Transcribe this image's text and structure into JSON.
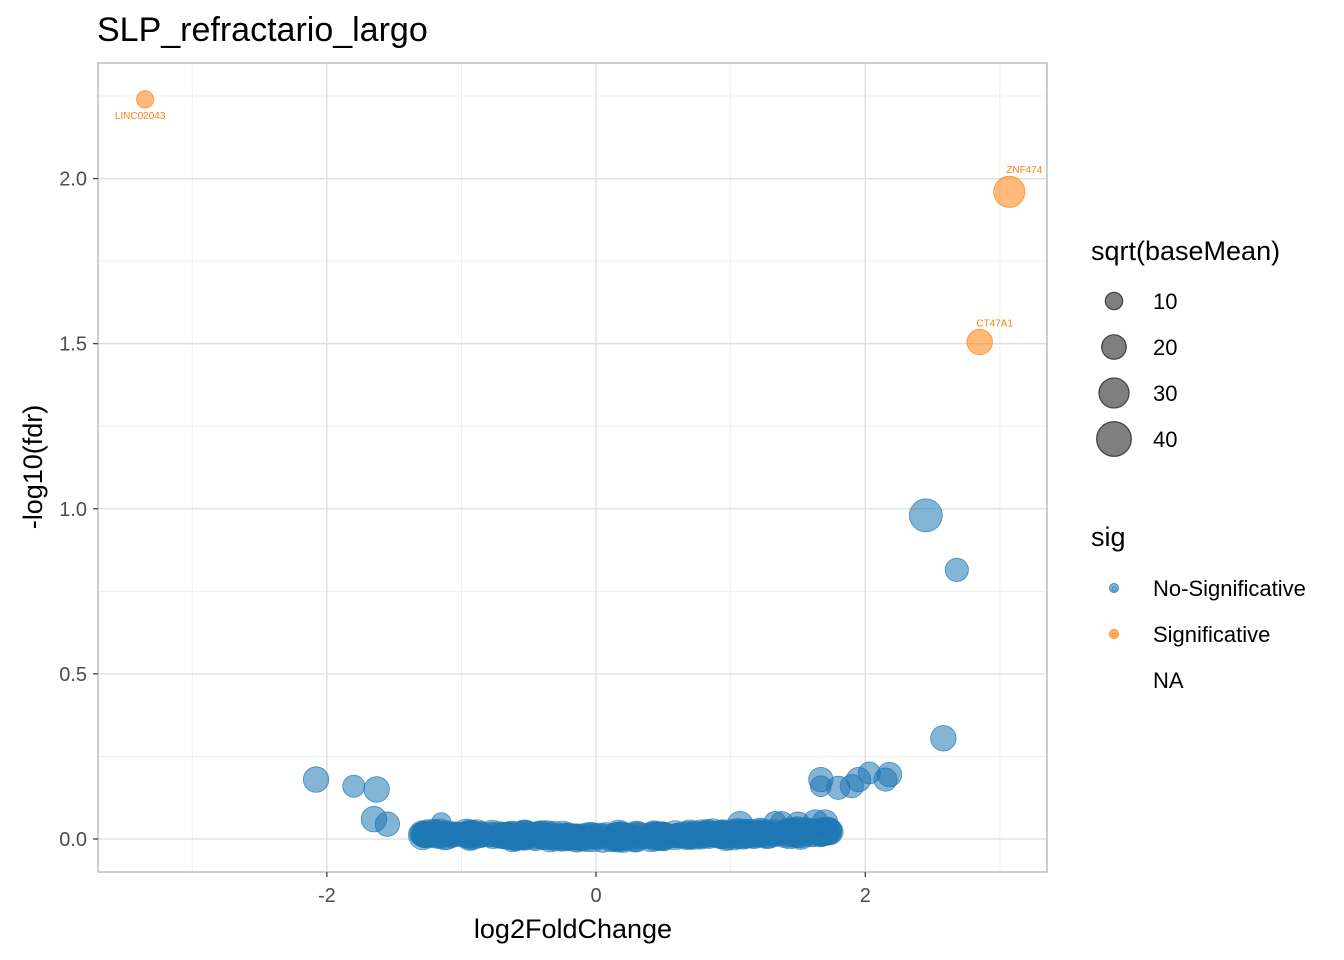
{
  "chart_data": {
    "type": "scatter",
    "title": "SLP_refractario_largo",
    "xlabel": "log2FoldChange",
    "ylabel": "-log10(fdr)",
    "xlim": [
      -3.7,
      3.35
    ],
    "ylim": [
      -0.1,
      2.35
    ],
    "xticks": [
      -2,
      0,
      2
    ],
    "xtick_labels": [
      "-2",
      "0",
      "2"
    ],
    "yticks": [
      0.0,
      0.5,
      1.0,
      1.5,
      2.0
    ],
    "ytick_labels": [
      "0.0",
      "0.5",
      "1.0",
      "1.5",
      "2.0"
    ],
    "grid": true,
    "legend_position": "right",
    "legend_size": {
      "title": "sqrt(baseMean)",
      "entries": [
        {
          "label": "10",
          "value": 10
        },
        {
          "label": "20",
          "value": 20
        },
        {
          "label": "30",
          "value": 30
        },
        {
          "label": "40",
          "value": 40
        }
      ]
    },
    "legend_color": {
      "title": "sig",
      "entries": [
        {
          "label": "No-Significative",
          "color": "#1f77b4"
        },
        {
          "label": "Significative",
          "color": "#ff7f0e"
        },
        {
          "label": "NA",
          "color": ""
        }
      ]
    },
    "series": [
      {
        "name": "No-Significative",
        "color": "#1f77b4",
        "points": [
          {
            "x": 2.45,
            "y": 0.98,
            "size": 40
          },
          {
            "x": 2.68,
            "y": 0.815,
            "size": 20
          },
          {
            "x": 2.58,
            "y": 0.305,
            "size": 24
          },
          {
            "x": -2.08,
            "y": 0.18,
            "size": 24
          },
          {
            "x": -1.8,
            "y": 0.16,
            "size": 18
          },
          {
            "x": -1.63,
            "y": 0.15,
            "size": 24
          },
          {
            "x": -1.65,
            "y": 0.06,
            "size": 24
          },
          {
            "x": -1.55,
            "y": 0.045,
            "size": 22
          },
          {
            "x": -1.3,
            "y": 0.015,
            "size": 20
          },
          {
            "x": -1.15,
            "y": 0.05,
            "size": 14
          },
          {
            "x": -1.1,
            "y": 0.012,
            "size": 22
          },
          {
            "x": -0.98,
            "y": 0.01,
            "size": 20
          },
          {
            "x": -0.85,
            "y": 0.012,
            "size": 22
          },
          {
            "x": -0.7,
            "y": 0.01,
            "size": 24
          },
          {
            "x": -0.55,
            "y": 0.008,
            "size": 22
          },
          {
            "x": -0.4,
            "y": 0.005,
            "size": 22
          },
          {
            "x": -0.25,
            "y": 0.004,
            "size": 24
          },
          {
            "x": -0.1,
            "y": 0.003,
            "size": 22
          },
          {
            "x": 0.05,
            "y": 0.003,
            "size": 30
          },
          {
            "x": 0.2,
            "y": 0.004,
            "size": 32
          },
          {
            "x": 0.3,
            "y": 0.008,
            "size": 34
          },
          {
            "x": 0.45,
            "y": 0.01,
            "size": 26
          },
          {
            "x": 0.6,
            "y": 0.01,
            "size": 22
          },
          {
            "x": 0.8,
            "y": 0.012,
            "size": 24
          },
          {
            "x": 0.95,
            "y": 0.01,
            "size": 22
          },
          {
            "x": 1.07,
            "y": 0.045,
            "size": 24
          },
          {
            "x": 1.2,
            "y": 0.015,
            "size": 26
          },
          {
            "x": 1.33,
            "y": 0.05,
            "size": 18
          },
          {
            "x": 1.38,
            "y": 0.048,
            "size": 20
          },
          {
            "x": 1.45,
            "y": 0.02,
            "size": 22
          },
          {
            "x": 1.5,
            "y": 0.045,
            "size": 22
          },
          {
            "x": 1.63,
            "y": 0.05,
            "size": 24
          },
          {
            "x": 1.7,
            "y": 0.05,
            "size": 24
          },
          {
            "x": 1.67,
            "y": 0.18,
            "size": 22
          },
          {
            "x": 1.67,
            "y": 0.16,
            "size": 16
          },
          {
            "x": 1.8,
            "y": 0.155,
            "size": 20
          },
          {
            "x": 1.9,
            "y": 0.16,
            "size": 20
          },
          {
            "x": 1.95,
            "y": 0.18,
            "size": 22
          },
          {
            "x": 2.03,
            "y": 0.2,
            "size": 18
          },
          {
            "x": 2.15,
            "y": 0.18,
            "size": 20
          },
          {
            "x": 2.18,
            "y": 0.195,
            "size": 22
          }
        ]
      },
      {
        "name": "Significative",
        "color": "#ff7f0e",
        "points": [
          {
            "x": -3.35,
            "y": 2.24,
            "size": 11,
            "label": "LINC02043"
          },
          {
            "x": 3.07,
            "y": 1.96,
            "size": 36,
            "label": "ZNF474"
          },
          {
            "x": 2.85,
            "y": 1.505,
            "size": 24,
            "label": "CT47A1"
          }
        ]
      }
    ],
    "cloud": {
      "color": "#1f77b4",
      "x_range": [
        -1.3,
        1.75
      ],
      "count": 320
    }
  }
}
